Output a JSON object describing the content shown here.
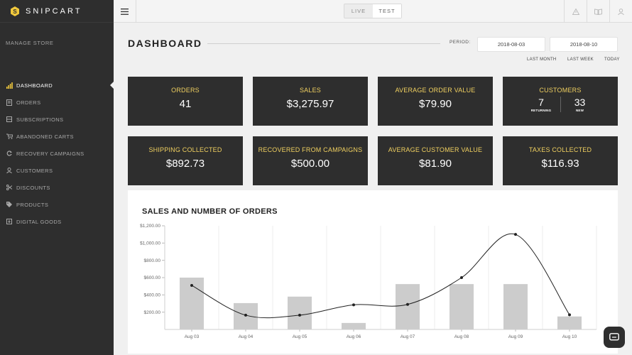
{
  "brand": {
    "name": "SNIPCART",
    "accent": "#f0c83c"
  },
  "sidebar": {
    "section_label": "MANAGE STORE",
    "items": [
      {
        "label": "DASHBOARD",
        "icon": "bar-chart-icon",
        "active": true
      },
      {
        "label": "ORDERS",
        "icon": "receipt-icon"
      },
      {
        "label": "SUBSCRIPTIONS",
        "icon": "list-icon"
      },
      {
        "label": "ABANDONED CARTS",
        "icon": "cart-icon"
      },
      {
        "label": "RECOVERY CAMPAIGNS",
        "icon": "refresh-icon"
      },
      {
        "label": "CUSTOMERS",
        "icon": "user-icon"
      },
      {
        "label": "DISCOUNTS",
        "icon": "scissors-icon"
      },
      {
        "label": "PRODUCTS",
        "icon": "tag-icon"
      },
      {
        "label": "DIGITAL GOODS",
        "icon": "download-icon"
      }
    ]
  },
  "topbar": {
    "modes": [
      {
        "label": "LIVE",
        "selected": false
      },
      {
        "label": "TEST",
        "selected": true
      }
    ],
    "icons": [
      "warning-icon",
      "book-icon",
      "account-icon"
    ]
  },
  "header": {
    "title": "DASHBOARD",
    "period_label": "PERIOD:",
    "date_from": "2018-08-03",
    "date_to": "2018-08-10",
    "quick_links": [
      "LAST MONTH",
      "LAST WEEK",
      "TODAY"
    ]
  },
  "stats": {
    "orders": {
      "label": "ORDERS",
      "value": "41"
    },
    "sales": {
      "label": "SALES",
      "value": "$3,275.97"
    },
    "aov": {
      "label": "AVERAGE ORDER VALUE",
      "value": "$79.90"
    },
    "customers": {
      "label": "CUSTOMERS",
      "returning": "7",
      "returning_label": "RETURNING",
      "new": "33",
      "new_label": "NEW"
    },
    "shipping": {
      "label": "SHIPPING COLLECTED",
      "value": "$892.73"
    },
    "recovered": {
      "label": "RECOVERED FROM CAMPAIGNS",
      "value": "$500.00"
    },
    "acv": {
      "label": "AVERAGE CUSTOMER VALUE",
      "value": "$81.90"
    },
    "taxes": {
      "label": "TAXES COLLECTED",
      "value": "$116.93"
    }
  },
  "chart": {
    "title": "SALES AND NUMBER OF ORDERS",
    "colors": {
      "bar": "#cccccc",
      "line": "#222222",
      "grid": "#eeeeee"
    }
  },
  "chart_data": {
    "type": "bar",
    "title": "SALES AND NUMBER OF ORDERS",
    "categories": [
      "Aug 03",
      "Aug 04",
      "Aug 05",
      "Aug 06",
      "Aug 07",
      "Aug 08",
      "Aug 09",
      "Aug 10"
    ],
    "y_ticks": [
      "$200.00",
      "$400.00",
      "$600.00",
      "$800.00",
      "$1,000.00",
      "$1,200.00"
    ],
    "ylim": [
      0,
      1200
    ],
    "series": [
      {
        "type": "bar",
        "values": [
          600,
          305,
          380,
          75,
          525,
          525,
          525,
          150
        ]
      },
      {
        "type": "line",
        "values": [
          510,
          165,
          165,
          285,
          290,
          600,
          1100,
          170
        ]
      }
    ],
    "grid": true
  }
}
